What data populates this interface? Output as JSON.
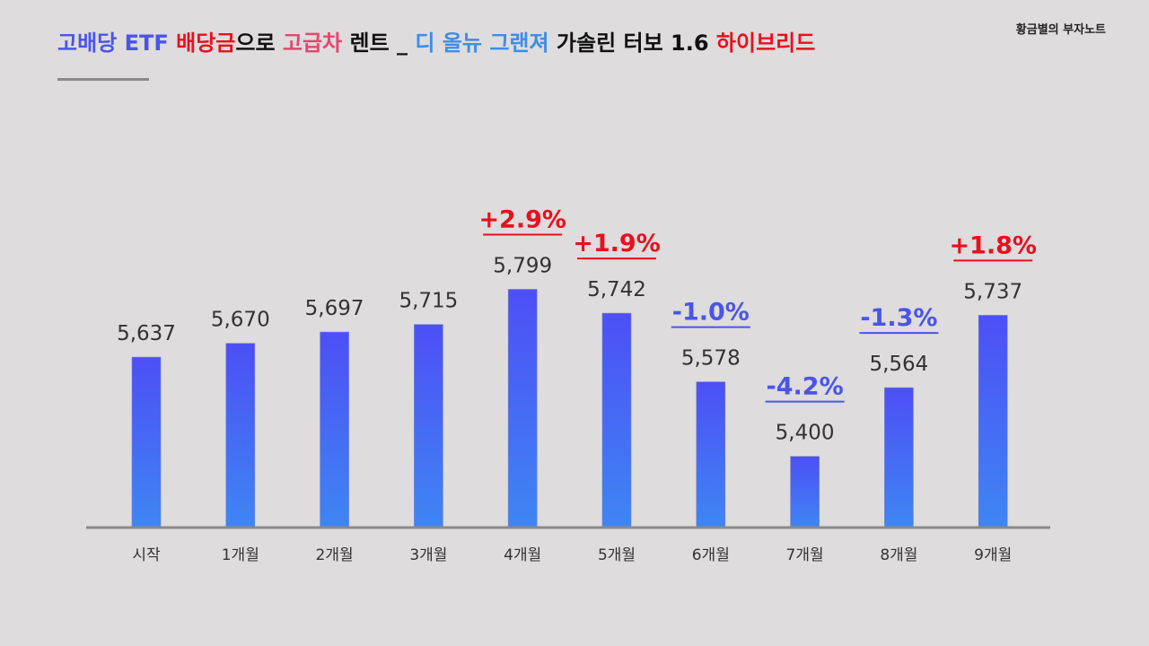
{
  "header": {
    "title_segments": [
      {
        "text": "고배당 ETF ",
        "color": "#4a55e8"
      },
      {
        "text": "배당금",
        "color": "#e8101e"
      },
      {
        "text": "으로 ",
        "color": "#111111"
      },
      {
        "text": "고급차",
        "color": "#e8456e"
      },
      {
        "text": " 렌트 _ ",
        "color": "#111111"
      },
      {
        "text": "디 올뉴 그랜져",
        "color": "#3e8de8"
      },
      {
        "text": " 가솔린 터보 1.6 ",
        "color": "#111111"
      },
      {
        "text": "하이브리드",
        "color": "#e8101e"
      }
    ],
    "brand": "황금별의 부자노트"
  },
  "colors": {
    "background": "#dedcdd",
    "bar_top": "#4d4ff5",
    "bar_bottom": "#3e86f3",
    "positive": "#e8101e",
    "negative": "#4a55e8",
    "axis": "#8a8a8a"
  },
  "chart_data": {
    "type": "bar",
    "categories": [
      "시작",
      "1개월",
      "2개월",
      "3개월",
      "4개월",
      "5개월",
      "6개월",
      "7개월",
      "8개월",
      "9개월"
    ],
    "values": [
      5637,
      5670,
      5697,
      5715,
      5799,
      5742,
      5578,
      5400,
      5564,
      5737
    ],
    "value_labels": [
      "5,637",
      "5,670",
      "5,697",
      "5,715",
      "5,799",
      "5,742",
      "5,578",
      "5,400",
      "5,564",
      "5,737"
    ],
    "annotations": [
      {
        "category": "4개월",
        "text": "+2.9%",
        "sign": "positive"
      },
      {
        "category": "5개월",
        "text": "+1.9%",
        "sign": "positive"
      },
      {
        "category": "6개월",
        "text": "-1.0%",
        "sign": "negative"
      },
      {
        "category": "7개월",
        "text": "-4.2%",
        "sign": "negative"
      },
      {
        "category": "8개월",
        "text": "-1.3%",
        "sign": "negative"
      },
      {
        "category": "9개월",
        "text": "+1.8%",
        "sign": "positive"
      }
    ],
    "ylim": [
      5230,
      5800
    ],
    "grid": false,
    "legend": "none"
  }
}
